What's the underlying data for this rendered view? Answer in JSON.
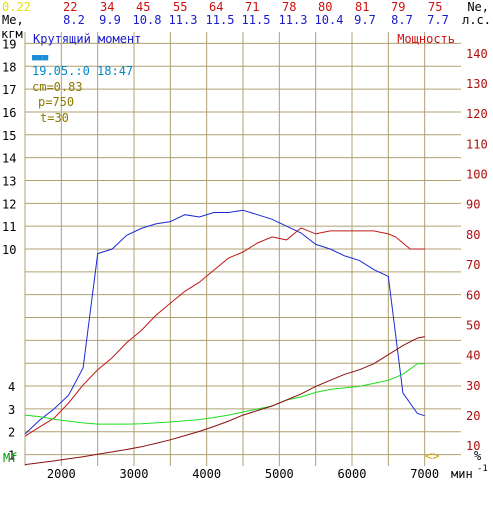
{
  "colors": {
    "grid": "#b0a070",
    "torque": "#1c2ad8",
    "power": "#c01818",
    "green": "#22dd22",
    "darkred": "#8a1010",
    "yellow": "#e8e000",
    "cyan": "#0088cc",
    "olive": "#8a7a00",
    "blue_text": "#1a1acc",
    "red_text": "#cc1010",
    "green_text": "#009900"
  },
  "header": {
    "ne_label": "Ne,",
    "ne_unit": "л.с.",
    "me_label": "Me,",
    "kgm_label": "кгм",
    "top_values": [
      "0.22",
      "22",
      "34",
      "45",
      "55",
      "64",
      "71",
      "78",
      "80",
      "81",
      "79",
      "75"
    ],
    "me_values": [
      "8.2",
      "9.9",
      "10.8",
      "11.3",
      "11.5",
      "11.5",
      "11.3",
      "10.4",
      "9.7",
      "8.7",
      "7.7"
    ]
  },
  "legend": {
    "torque_title": "Крутящий момент",
    "power_title": "Мощность",
    "marker": "■■■",
    "datetime": "19.05.:0 18:47",
    "cm": "cm=0.83",
    "p": "p=750",
    "t": "t=30"
  },
  "footer": {
    "mf_label": "Mf",
    "rpm_unit": "мин",
    "rpm_exp": "-1",
    "percent": "%",
    "arrows": "<>"
  },
  "chart_data": {
    "type": "line",
    "x_range": [
      1500,
      7500
    ],
    "y_left_range": [
      0.5,
      19.5
    ],
    "y_right_range": [
      3.125,
      146.875
    ],
    "x_ticks": [
      2000,
      3000,
      4000,
      5000,
      6000,
      7000
    ],
    "y_left_ticks": [
      1,
      2,
      3,
      4,
      10,
      11,
      12,
      13,
      14,
      15,
      16,
      17,
      18,
      19
    ],
    "y_right_ticks": [
      10,
      20,
      30,
      40,
      50,
      60,
      70,
      80,
      90,
      100,
      110,
      120,
      130,
      140
    ],
    "series": [
      {
        "name": "Крутящий момент",
        "color": "#1c2ad8",
        "points": [
          [
            1500,
            1.9
          ],
          [
            1700,
            2.5
          ],
          [
            1900,
            3.0
          ],
          [
            2100,
            3.6
          ],
          [
            2300,
            4.8
          ],
          [
            2500,
            9.8
          ],
          [
            2700,
            10.0
          ],
          [
            2900,
            10.6
          ],
          [
            3100,
            10.9
          ],
          [
            3300,
            11.1
          ],
          [
            3500,
            11.2
          ],
          [
            3700,
            11.5
          ],
          [
            3900,
            11.4
          ],
          [
            4100,
            11.6
          ],
          [
            4300,
            11.6
          ],
          [
            4500,
            11.7
          ],
          [
            4700,
            11.5
          ],
          [
            4900,
            11.3
          ],
          [
            5100,
            11.0
          ],
          [
            5300,
            10.7
          ],
          [
            5500,
            10.2
          ],
          [
            5700,
            10.0
          ],
          [
            5900,
            9.7
          ],
          [
            6100,
            9.5
          ],
          [
            6300,
            9.1
          ],
          [
            6500,
            8.8
          ],
          [
            6700,
            3.7
          ],
          [
            6900,
            2.8
          ],
          [
            7000,
            2.7
          ]
        ]
      },
      {
        "name": "Мощность",
        "color": "#c01818",
        "points": [
          [
            1500,
            13
          ],
          [
            1700,
            16
          ],
          [
            1900,
            19
          ],
          [
            2100,
            24
          ],
          [
            2300,
            30
          ],
          [
            2500,
            35
          ],
          [
            2700,
            39
          ],
          [
            2900,
            44
          ],
          [
            3100,
            48
          ],
          [
            3300,
            53
          ],
          [
            3500,
            57
          ],
          [
            3700,
            61
          ],
          [
            3900,
            64
          ],
          [
            4100,
            68
          ],
          [
            4300,
            72
          ],
          [
            4500,
            74
          ],
          [
            4700,
            77
          ],
          [
            4900,
            79
          ],
          [
            5100,
            78
          ],
          [
            5300,
            82
          ],
          [
            5500,
            80
          ],
          [
            5700,
            81
          ],
          [
            5900,
            81
          ],
          [
            6100,
            81
          ],
          [
            6300,
            81
          ],
          [
            6500,
            80
          ],
          [
            6600,
            79
          ],
          [
            6800,
            75
          ],
          [
            7000,
            75
          ]
        ]
      },
      {
        "name": "",
        "color": "#22dd22",
        "points": [
          [
            1500,
            20
          ],
          [
            1700,
            19.5
          ],
          [
            1900,
            18.6
          ],
          [
            2100,
            18
          ],
          [
            2300,
            17.4
          ],
          [
            2500,
            17
          ],
          [
            2700,
            17
          ],
          [
            2900,
            17
          ],
          [
            3100,
            17.1
          ],
          [
            3300,
            17.4
          ],
          [
            3500,
            17.7
          ],
          [
            3700,
            18.1
          ],
          [
            3900,
            18.5
          ],
          [
            4100,
            19.2
          ],
          [
            4300,
            20
          ],
          [
            4500,
            21
          ],
          [
            4700,
            22
          ],
          [
            4900,
            23
          ],
          [
            5100,
            25
          ],
          [
            5300,
            26
          ],
          [
            5500,
            27.5
          ],
          [
            5700,
            28.5
          ],
          [
            5900,
            29
          ],
          [
            6100,
            29.5
          ],
          [
            6300,
            30.5
          ],
          [
            6500,
            31.5
          ],
          [
            6700,
            33.5
          ],
          [
            6900,
            37
          ],
          [
            7000,
            37
          ]
        ]
      },
      {
        "name": "",
        "color": "#8a1010",
        "points": [
          [
            1500,
            3.6
          ],
          [
            1700,
            4.2
          ],
          [
            1900,
            4.8
          ],
          [
            2100,
            5.5
          ],
          [
            2300,
            6.2
          ],
          [
            2500,
            7
          ],
          [
            2700,
            7.8
          ],
          [
            2900,
            8.6
          ],
          [
            3100,
            9.5
          ],
          [
            3300,
            10.6
          ],
          [
            3500,
            11.8
          ],
          [
            3700,
            13.2
          ],
          [
            3900,
            14.6
          ],
          [
            4100,
            16.2
          ],
          [
            4300,
            18
          ],
          [
            4500,
            20
          ],
          [
            4700,
            21.5
          ],
          [
            4900,
            23
          ],
          [
            5100,
            25
          ],
          [
            5300,
            27
          ],
          [
            5500,
            29.5
          ],
          [
            5700,
            31.5
          ],
          [
            5900,
            33.5
          ],
          [
            6100,
            35
          ],
          [
            6300,
            37
          ],
          [
            6500,
            40
          ],
          [
            6700,
            43
          ],
          [
            6900,
            45.5
          ],
          [
            7000,
            46
          ]
        ]
      }
    ]
  }
}
